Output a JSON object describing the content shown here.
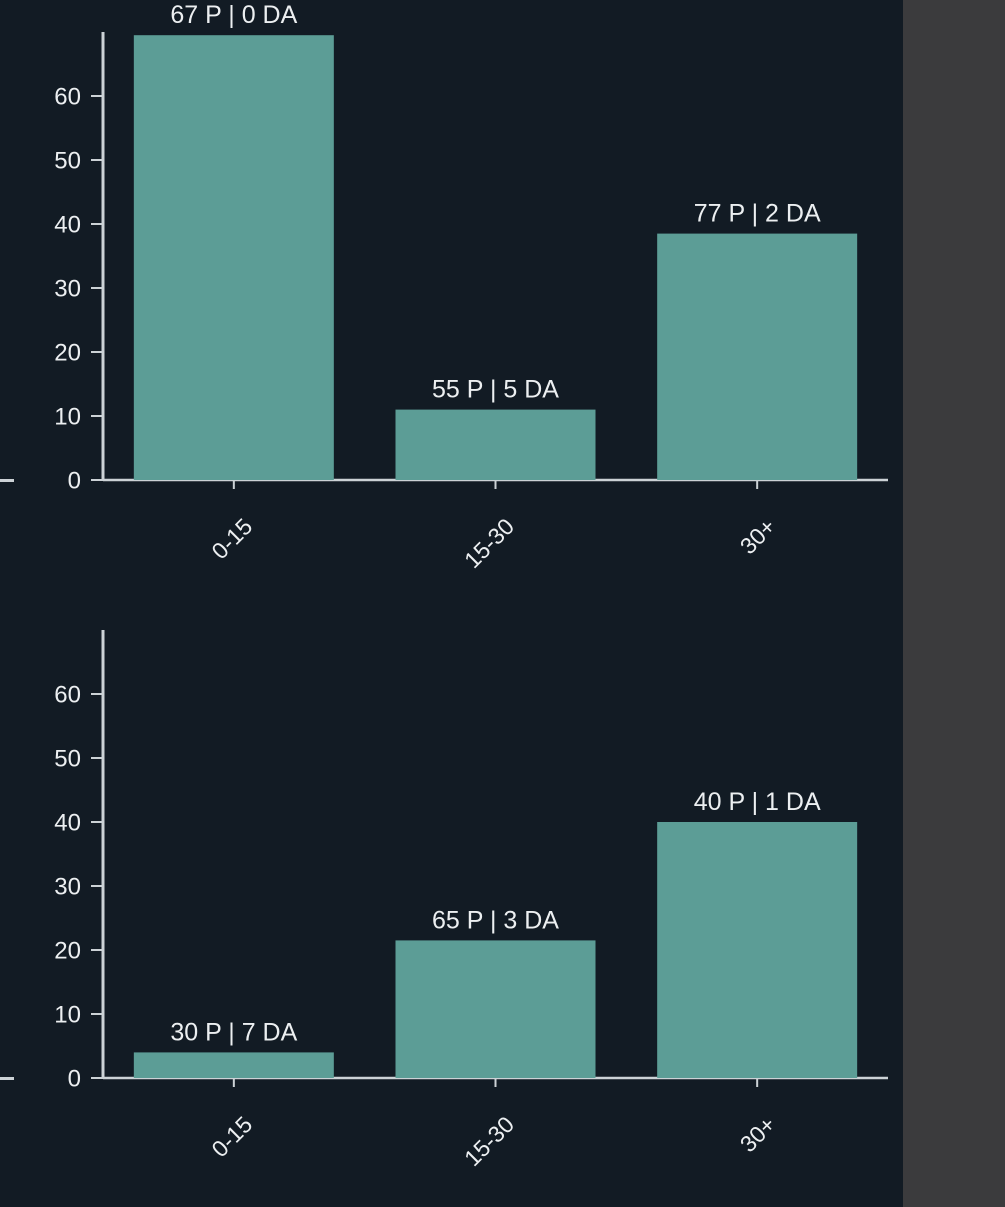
{
  "page": {
    "background_color": "#121b24",
    "side_panel_color": "#3b3b3d",
    "axis_color": "#ccd2d6",
    "text_color": "#eceff1",
    "bar_color": "#5c9d96"
  },
  "chart_data": [
    {
      "type": "bar",
      "title": "",
      "categories": [
        "0-15",
        "15-30",
        "30+"
      ],
      "values": [
        69.5,
        11,
        38.5
      ],
      "bar_labels": [
        "67 P | 0 DA",
        "55 P | 5 DA",
        "77 P | 2 DA"
      ],
      "yticks": [
        0,
        10,
        20,
        30,
        40,
        50,
        60
      ],
      "ylim": [
        0,
        70
      ],
      "grid": false,
      "legend": "none",
      "x_label_rotation": -45
    },
    {
      "type": "bar",
      "title": "",
      "categories": [
        "0-15",
        "15-30",
        "30+"
      ],
      "values": [
        4,
        21.5,
        40
      ],
      "bar_labels": [
        "30 P | 7 DA",
        "65 P | 3 DA",
        "40 P | 1 DA"
      ],
      "yticks": [
        0,
        10,
        20,
        30,
        40,
        50,
        60
      ],
      "ylim": [
        0,
        70
      ],
      "grid": false,
      "legend": "none",
      "x_label_rotation": -45
    }
  ]
}
